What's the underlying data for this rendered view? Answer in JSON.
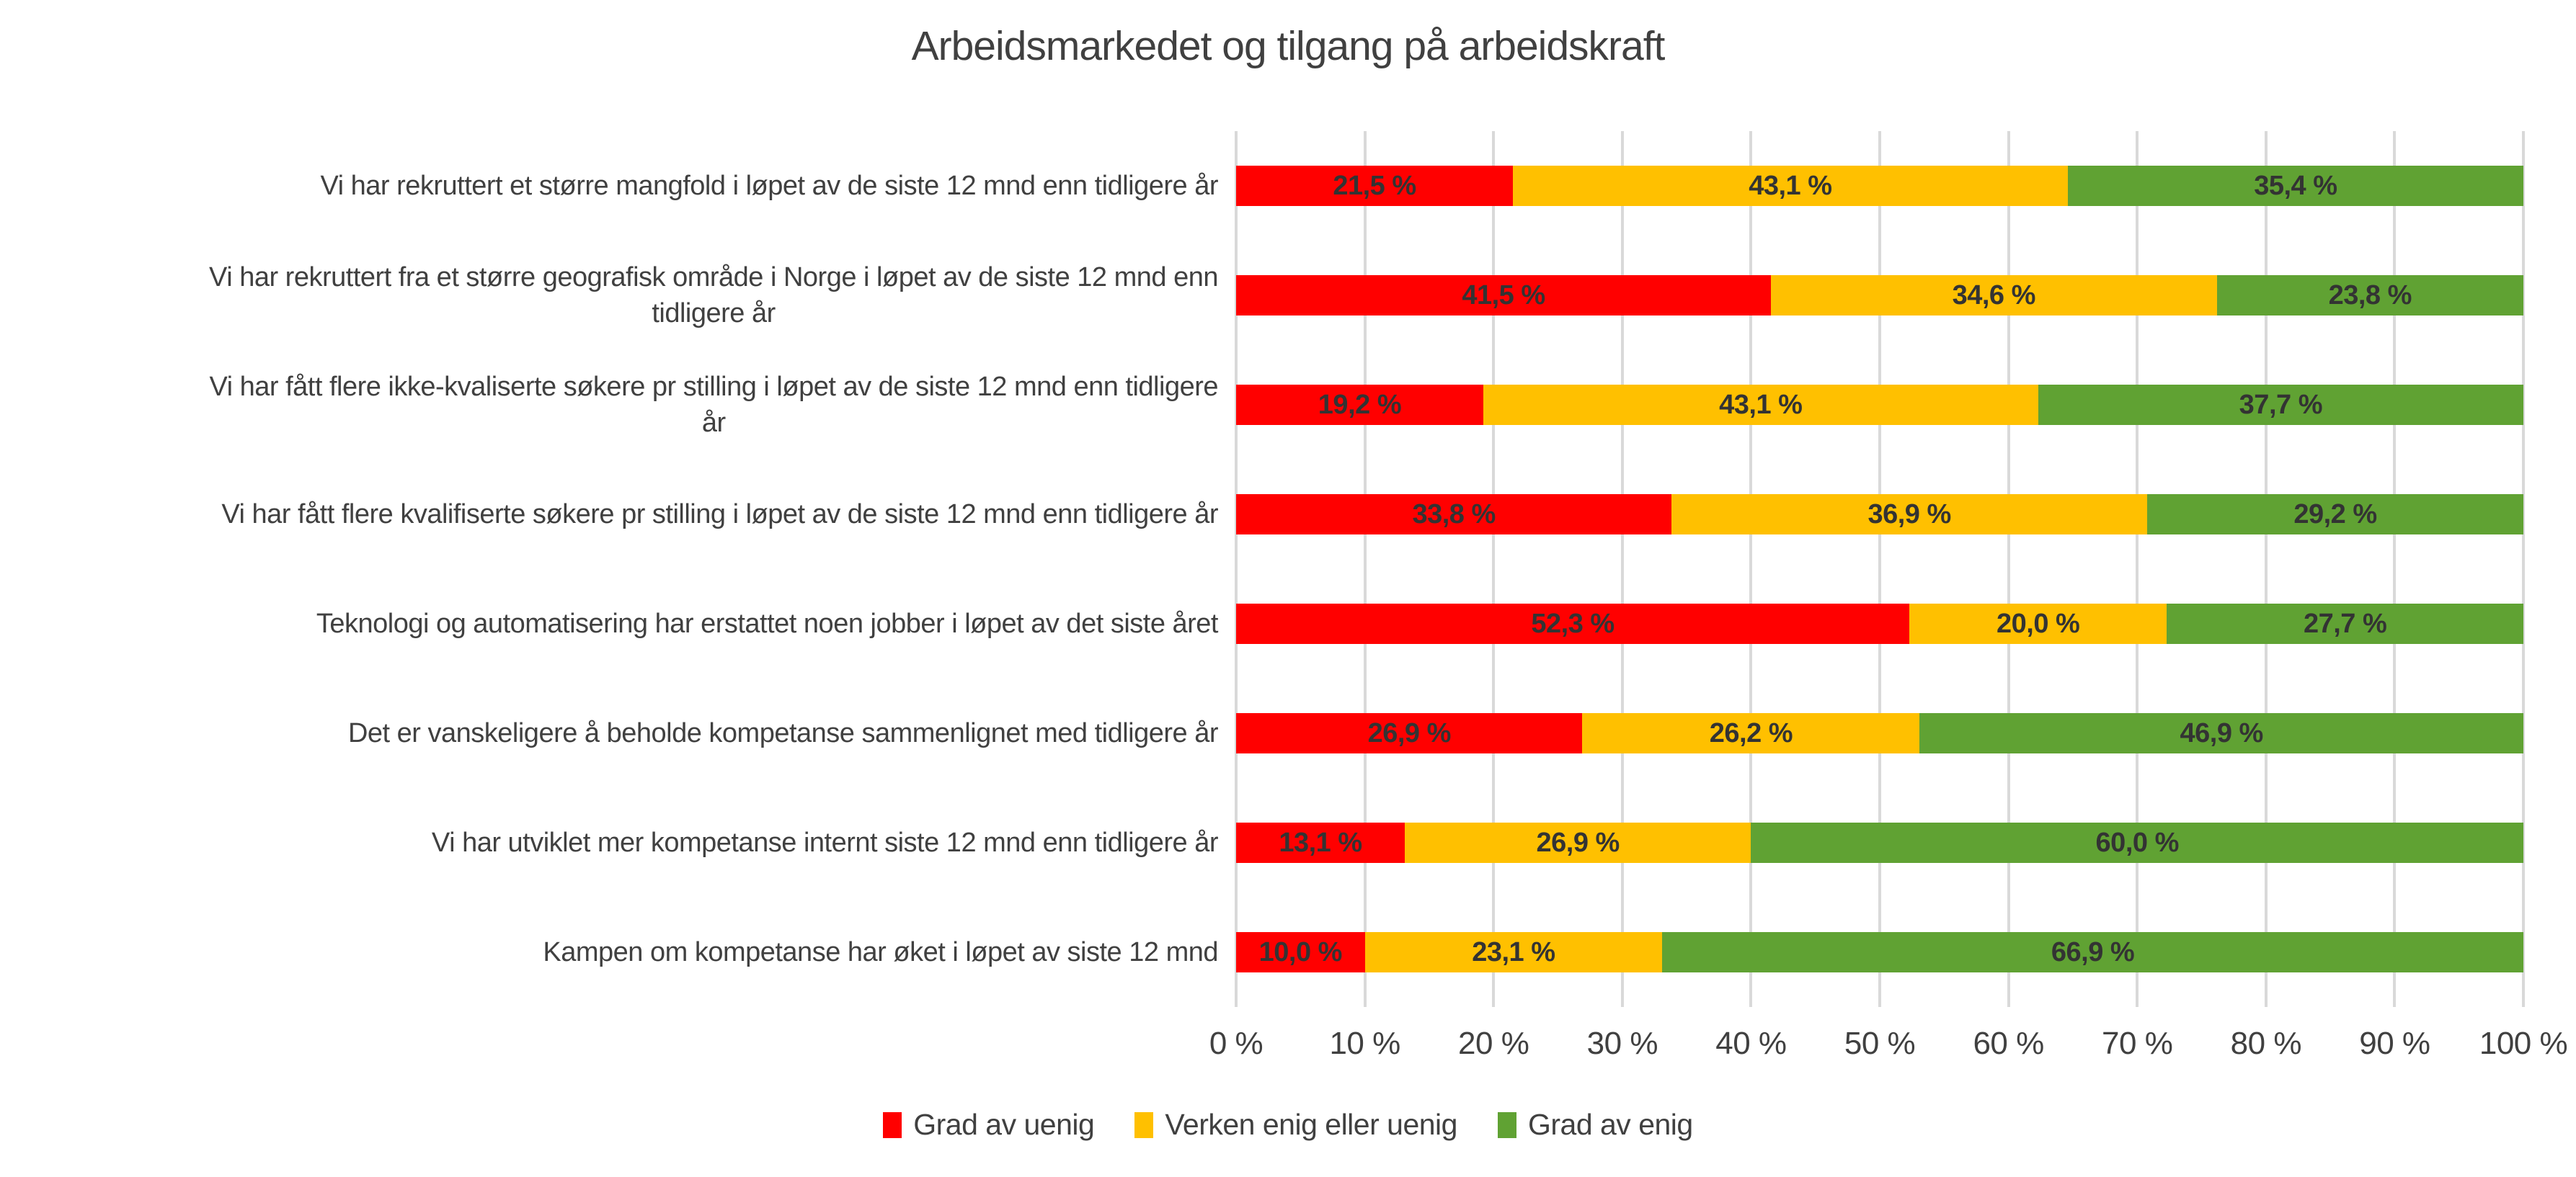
{
  "title": "Arbeidsmarkedet og tilgang på arbeidskraft",
  "colors": {
    "disagree_red": "#FF0000",
    "neutral_orange": "#FFC000",
    "agree_green": "#60A233",
    "gridline": "#D9D9D9",
    "text": "#404040",
    "bar_label_text": "#333333",
    "background": "#FFFFFF"
  },
  "chart_data": {
    "type": "bar",
    "variant": "horizontal-stacked-100",
    "title": "Arbeidsmarkedet og tilgang på arbeidskraft",
    "categories": [
      "Vi har rekruttert et større mangfold i løpet av de siste 12 mnd enn tidligere år",
      "Vi har rekruttert fra et større geografisk område i Norge i løpet av de siste 12 mnd enn\ntidligere år",
      "Vi har fått flere ikke-kvaliserte søkere pr stilling i løpet av de siste 12 mnd enn tidligere\når",
      "Vi har fått flere kvalifiserte søkere pr stilling i løpet av de siste 12 mnd enn tidligere år",
      "Teknologi og automatisering har erstattet noen jobber i løpet av det siste året",
      "Det er vanskeligere å beholde kompetanse sammenlignet med tidligere år",
      "Vi har utviklet mer kompetanse internt siste 12 mnd enn tidligere år",
      "Kampen om kompetanse har øket i løpet av siste 12 mnd"
    ],
    "series": [
      {
        "name": "Grad av uenig",
        "color": "#FF0000",
        "values": [
          21.5,
          41.5,
          19.2,
          33.8,
          52.3,
          26.9,
          13.1,
          10.0
        ],
        "labels": [
          "21,5 %",
          "41,5 %",
          "19,2 %",
          "33,8 %",
          "52,3 %",
          "26,9 %",
          "13,1 %",
          "10,0 %"
        ]
      },
      {
        "name": "Verken enig eller uenig",
        "color": "#FFC000",
        "values": [
          43.1,
          34.6,
          43.1,
          36.9,
          20.0,
          26.2,
          26.9,
          23.1
        ],
        "labels": [
          "43,1 %",
          "34,6 %",
          "43,1 %",
          "36,9 %",
          "20,0 %",
          "26,2 %",
          "26,9 %",
          "23,1 %"
        ]
      },
      {
        "name": "Grad av enig",
        "color": "#60A233",
        "values": [
          35.4,
          23.8,
          37.7,
          29.2,
          27.7,
          46.9,
          60.0,
          66.9
        ],
        "labels": [
          "35,4 %",
          "23,8 %",
          "37,7 %",
          "29,2 %",
          "27,7 %",
          "46,9 %",
          "60,0 %",
          "66,9 %"
        ]
      }
    ],
    "x_axis": {
      "range": [
        0,
        100
      ],
      "ticks": [
        "0 %",
        "10 %",
        "20 %",
        "30 %",
        "40 %",
        "50 %",
        "60 %",
        "70 %",
        "80 %",
        "90 %",
        "100 %"
      ],
      "grid": true
    },
    "legend_position": "bottom"
  }
}
